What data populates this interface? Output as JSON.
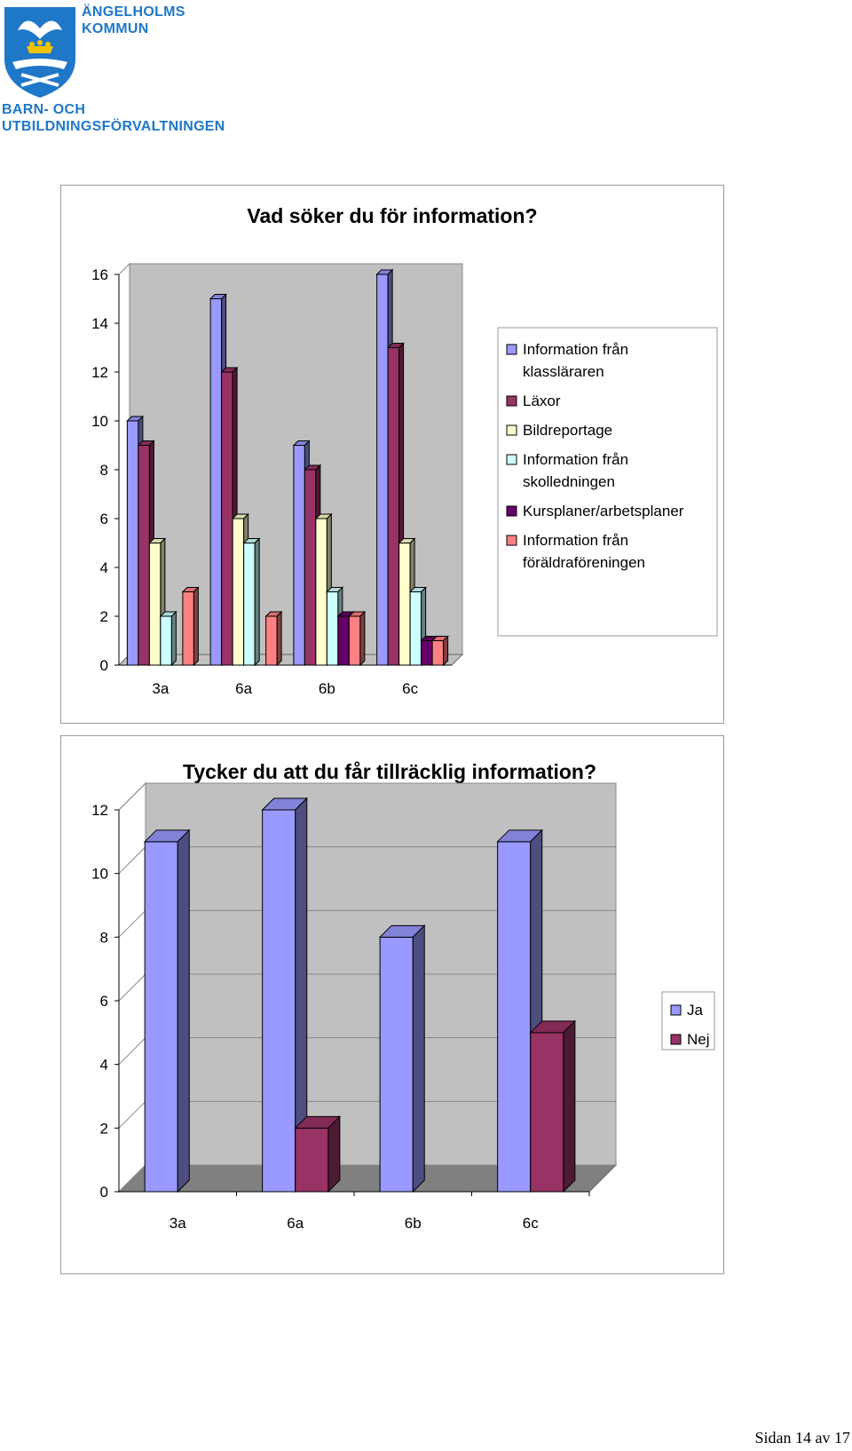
{
  "header": {
    "org_line1": "ÄNGELHOLMS",
    "org_line2": "KOMMUN",
    "dept_line1": "BARN- OCH",
    "dept_line2": "UTBILDNINGSFÖRVALTNINGEN",
    "logo_color": "#1f77c8"
  },
  "chart_data": [
    {
      "type": "bar",
      "title": "Vad söker du för information?",
      "categories": [
        "3a",
        "6a",
        "6b",
        "6c"
      ],
      "ylim": [
        0,
        16
      ],
      "yticks": [
        "0",
        "2",
        "4",
        "6",
        "8",
        "10",
        "12",
        "14",
        "16"
      ],
      "legend_position": "right",
      "grid": false,
      "series": [
        {
          "name": "Information från klassläraren",
          "values": [
            10,
            15,
            9,
            16
          ],
          "color": "#9999ff"
        },
        {
          "name": "Läxor",
          "values": [
            9,
            12,
            8,
            13
          ],
          "color": "#993366"
        },
        {
          "name": "Bildreportage",
          "values": [
            5,
            6,
            6,
            5
          ],
          "color": "#ffffcc"
        },
        {
          "name": "Information från skolledningen",
          "values": [
            2,
            5,
            3,
            3
          ],
          "color": "#ccffff"
        },
        {
          "name": "Kursplaner/arbetsplaner",
          "values": [
            0,
            0,
            2,
            1
          ],
          "color": "#660066"
        },
        {
          "name": "Information från föräldraföreningen",
          "values": [
            3,
            2,
            2,
            1
          ],
          "color": "#ff8080"
        }
      ]
    },
    {
      "type": "bar",
      "title": "Tycker du att du får tillräcklig information?",
      "categories": [
        "3a",
        "6a",
        "6b",
        "6c"
      ],
      "ylim": [
        0,
        12
      ],
      "yticks": [
        "0",
        "2",
        "4",
        "6",
        "8",
        "10",
        "12"
      ],
      "legend_position": "right",
      "grid": true,
      "series": [
        {
          "name": "Ja",
          "values": [
            11,
            12,
            8,
            11
          ],
          "color": "#9999ff"
        },
        {
          "name": "Nej",
          "values": [
            0,
            2,
            0,
            5
          ],
          "color": "#993366"
        }
      ]
    }
  ],
  "footer": {
    "page_label": "Sidan 14 av 17"
  }
}
